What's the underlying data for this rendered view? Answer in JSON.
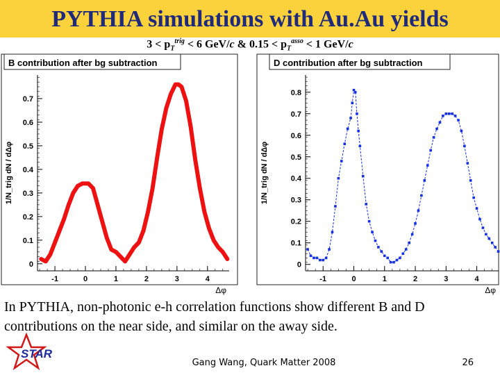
{
  "slide": {
    "title": "PYTHIA simulations with Au.Au yields",
    "subtitle_parts": [
      "3 < p",
      "T",
      "trig",
      " < 6 GeV/",
      "c",
      " & 0.15 < p",
      "T",
      "asso",
      " < 1 GeV/",
      "c"
    ],
    "caption": "In PYTHIA, non-photonic e-h correlation functions show different B and D contributions on the near side, and similar on the away side.",
    "footer": "Gang Wang, Quark Matter 2008",
    "page_number": "26",
    "logo_text": "STAR",
    "colors": {
      "title_bar": "#fbd23c",
      "title_text": "#1f2a7a",
      "b_series": "#ee1111",
      "d_series": "#1530e0"
    }
  },
  "chart_data": [
    {
      "type": "line",
      "title": "B contribution after bg subtraction",
      "xlabel": "Δφ",
      "ylabel": "1/N_trig dN / dΔφ",
      "xlim": [
        -1.57,
        4.71
      ],
      "ylim": [
        -0.03,
        0.8
      ],
      "xticks": [
        -1,
        0,
        1,
        2,
        3,
        4
      ],
      "yticks": [
        0,
        0.1,
        0.2,
        0.3,
        0.4,
        0.5,
        0.6,
        0.7
      ],
      "series": [
        {
          "color": "#ee1111",
          "x": [
            -1.45,
            -1.3,
            -1.15,
            -1.0,
            -0.85,
            -0.7,
            -0.55,
            -0.4,
            -0.25,
            -0.1,
            0.0,
            0.1,
            0.25,
            0.4,
            0.55,
            0.7,
            0.85,
            1.0,
            1.15,
            1.3,
            1.45,
            1.6,
            1.75,
            1.9,
            2.05,
            2.2,
            2.35,
            2.5,
            2.65,
            2.8,
            2.95,
            3.05,
            3.15,
            3.3,
            3.45,
            3.6,
            3.75,
            3.9,
            4.05,
            4.2,
            4.35,
            4.5,
            4.65
          ],
          "y": [
            0.02,
            0.01,
            0.04,
            0.09,
            0.14,
            0.19,
            0.25,
            0.3,
            0.33,
            0.34,
            0.34,
            0.34,
            0.32,
            0.25,
            0.18,
            0.11,
            0.06,
            0.05,
            0.03,
            0.01,
            0.04,
            0.07,
            0.09,
            0.14,
            0.22,
            0.32,
            0.45,
            0.57,
            0.66,
            0.72,
            0.76,
            0.76,
            0.75,
            0.69,
            0.58,
            0.44,
            0.32,
            0.22,
            0.15,
            0.1,
            0.07,
            0.05,
            0.02
          ]
        }
      ]
    },
    {
      "type": "scatter",
      "title": "D contribution  after bg subtraction",
      "xlabel": "Δφ",
      "ylabel": "1/N_trig dN / dΔφ",
      "xlim": [
        -1.57,
        4.71
      ],
      "ylim": [
        -0.03,
        0.88
      ],
      "xticks": [
        -1,
        0,
        1,
        2,
        3,
        4
      ],
      "yticks": [
        0,
        0.1,
        0.2,
        0.3,
        0.4,
        0.5,
        0.6,
        0.7,
        0.8
      ],
      "series": [
        {
          "color": "#1530e0",
          "x": [
            -1.5,
            -1.4,
            -1.3,
            -1.2,
            -1.1,
            -1.0,
            -0.9,
            -0.8,
            -0.7,
            -0.6,
            -0.5,
            -0.4,
            -0.3,
            -0.2,
            -0.1,
            -0.05,
            0.0,
            0.05,
            0.1,
            0.15,
            0.2,
            0.3,
            0.4,
            0.5,
            0.6,
            0.7,
            0.8,
            0.9,
            1.0,
            1.1,
            1.2,
            1.3,
            1.4,
            1.5,
            1.6,
            1.7,
            1.8,
            1.9,
            2.0,
            2.1,
            2.2,
            2.3,
            2.4,
            2.5,
            2.6,
            2.7,
            2.8,
            2.9,
            3.0,
            3.1,
            3.2,
            3.3,
            3.4,
            3.5,
            3.6,
            3.7,
            3.8,
            3.9,
            4.0,
            4.1,
            4.2,
            4.3,
            4.4,
            4.5,
            4.6,
            4.7
          ],
          "y": [
            0.07,
            0.04,
            0.03,
            0.03,
            0.02,
            0.02,
            0.03,
            0.07,
            0.15,
            0.27,
            0.4,
            0.48,
            0.56,
            0.63,
            0.68,
            0.75,
            0.81,
            0.8,
            0.7,
            0.62,
            0.55,
            0.41,
            0.28,
            0.2,
            0.15,
            0.11,
            0.08,
            0.06,
            0.04,
            0.03,
            0.01,
            0.01,
            0.02,
            0.03,
            0.05,
            0.07,
            0.1,
            0.14,
            0.19,
            0.25,
            0.32,
            0.39,
            0.46,
            0.53,
            0.59,
            0.63,
            0.66,
            0.69,
            0.7,
            0.7,
            0.7,
            0.69,
            0.67,
            0.62,
            0.55,
            0.47,
            0.39,
            0.31,
            0.26,
            0.21,
            0.17,
            0.14,
            0.12,
            0.1,
            0.08,
            0.06
          ]
        }
      ]
    }
  ]
}
